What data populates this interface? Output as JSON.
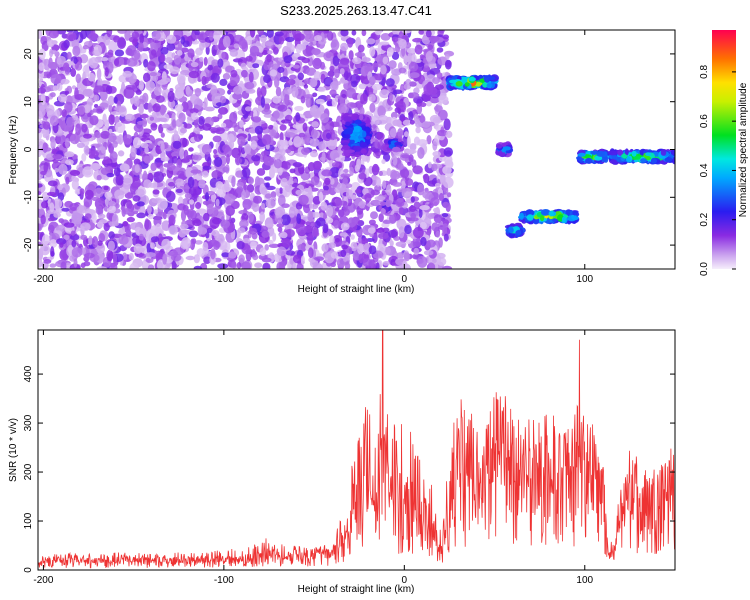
{
  "title": "S233.2025.263.13.47.C41",
  "colors": {
    "snr_line": "#ee3333",
    "frame": "#000000",
    "background": "#ffffff"
  },
  "chart_data": [
    {
      "type": "heatmap",
      "xlabel": "Height of straight line (km)",
      "ylabel": "Frequency (Hz)",
      "xlim": [
        -203,
        150
      ],
      "ylim": [
        -25,
        25
      ],
      "xticks": [
        -200,
        -100,
        0,
        100
      ],
      "yticks": [
        -20,
        -10,
        0,
        10,
        20
      ],
      "colorbar": {
        "label": "Normalized spectral amplitude",
        "range": [
          0,
          0.97
        ],
        "ticks": [
          0.0,
          0.2,
          0.4,
          0.6,
          0.8
        ],
        "tick_labels": [
          "0.0",
          "0.2",
          "0.4",
          "0.6",
          "0.8"
        ],
        "colormap": "rainbow (white-lavender at 0, violet, blue, cyan, green, yellow, orange, red at max)"
      },
      "features": [
        {
          "x_range": [
            -203,
            -35
          ],
          "freq_range": [
            -25,
            25
          ],
          "level": "low",
          "note": "speckled background noise"
        },
        {
          "x_range": [
            -35,
            25
          ],
          "freq_range": [
            -25,
            25
          ],
          "level": "low-medium",
          "note": "scattered noise columns"
        },
        {
          "x_range": [
            -33,
            -20
          ],
          "freq_range": [
            -1,
            7
          ],
          "level": 0.45,
          "note": "cyan cluster"
        },
        {
          "x_range": [
            -10,
            -2
          ],
          "freq_range": [
            0,
            2
          ],
          "level": 0.4
        },
        {
          "x_range": [
            -12,
            -9
          ],
          "freq_range": [
            -13,
            -11
          ],
          "level": 0.3
        },
        {
          "x_range": [
            25,
            50
          ],
          "freq_range": [
            13,
            15
          ],
          "level": 0.85,
          "note": "strong band ~14 Hz"
        },
        {
          "x_range": [
            52,
            58
          ],
          "freq_range": [
            -1,
            1
          ],
          "level": 0.5
        },
        {
          "x_range": [
            58,
            65
          ],
          "freq_range": [
            -18,
            -16
          ],
          "level": 0.6
        },
        {
          "x_range": [
            65,
            95
          ],
          "freq_range": [
            -15,
            -13
          ],
          "level": 0.8,
          "note": "strong band ~ -14 Hz"
        },
        {
          "x_range": [
            97,
            112
          ],
          "freq_range": [
            -2.5,
            -0.5
          ],
          "level": 0.75
        },
        {
          "x_range": [
            115,
            150
          ],
          "freq_range": [
            -2.5,
            -0.5
          ],
          "level": 0.7
        }
      ]
    },
    {
      "type": "line",
      "xlabel": "Height of straight line (km)",
      "ylabel": "SNR (10 * v/v)",
      "xlim": [
        -203,
        150
      ],
      "ylim": [
        0,
        490
      ],
      "xticks": [
        -200,
        -100,
        0,
        100
      ],
      "yticks": [
        0,
        100,
        200,
        300,
        400
      ],
      "series": [
        {
          "color": "#ee3333",
          "x": [
            -203,
            -190,
            -180,
            -170,
            -160,
            -150,
            -140,
            -130,
            -120,
            -110,
            -100,
            -90,
            -80,
            -77,
            -70,
            -60,
            -50,
            -40,
            -32,
            -28,
            -25,
            -20,
            -15,
            -12,
            -10,
            -5,
            0,
            5,
            10,
            15,
            20,
            22,
            25,
            30,
            35,
            40,
            45,
            50,
            55,
            60,
            65,
            70,
            75,
            80,
            85,
            90,
            95,
            97,
            100,
            105,
            110,
            113,
            116,
            120,
            125,
            130,
            135,
            140,
            145,
            150
          ],
          "y_base": [
            20,
            20,
            21,
            20,
            21,
            22,
            20,
            21,
            22,
            22,
            23,
            24,
            28,
            40,
            30,
            32,
            30,
            35,
            80,
            120,
            150,
            180,
            160,
            300,
            180,
            170,
            160,
            140,
            120,
            100,
            40,
            60,
            150,
            260,
            230,
            180,
            200,
            260,
            280,
            250,
            230,
            240,
            220,
            230,
            210,
            220,
            230,
            300,
            240,
            220,
            160,
            40,
            30,
            120,
            180,
            170,
            150,
            160,
            170,
            190
          ],
          "y_peak": [
            30,
            34,
            35,
            32,
            36,
            38,
            32,
            34,
            40,
            38,
            42,
            45,
            55,
            68,
            55,
            50,
            45,
            55,
            160,
            240,
            290,
            360,
            300,
            490,
            340,
            330,
            300,
            280,
            260,
            200,
            80,
            120,
            250,
            360,
            340,
            300,
            330,
            370,
            360,
            350,
            340,
            330,
            320,
            340,
            310,
            300,
            320,
            470,
            330,
            300,
            230,
            70,
            50,
            190,
            250,
            240,
            210,
            225,
            240,
            265
          ]
        }
      ]
    }
  ]
}
